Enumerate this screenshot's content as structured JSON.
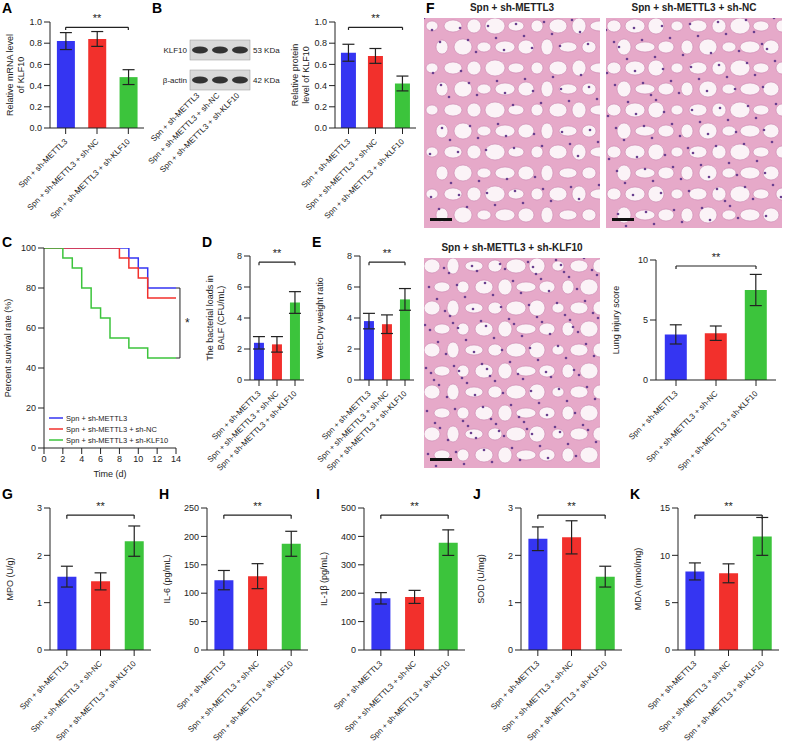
{
  "chart_data": [
    {
      "panel": "A",
      "type": "bar",
      "categories": [
        "Spn + sh-METTL3",
        "Spn + sh-METTL3 + sh-NC",
        "Spn + sh-METTL3 + sh-KLF10"
      ],
      "values": [
        0.82,
        0.84,
        0.48
      ],
      "errors": [
        0.08,
        0.07,
        0.07
      ],
      "colors": [
        "#3535f2",
        "#f2302c",
        "#3cc43c"
      ],
      "ylabel": "Relative mRNA level of KLF10",
      "ylim": [
        0,
        1
      ],
      "yticks": [
        {
          "value": 0,
          "label": "0.0"
        },
        0.2,
        0.4,
        0.6,
        0.8,
        {
          "value": 1,
          "label": "1.0"
        }
      ],
      "annotations": [
        {
          "text": "**",
          "between": [
            "Spn + sh-METTL3",
            "Spn + sh-METTL3 + sh-KLF10"
          ]
        }
      ]
    },
    {
      "panel": "B",
      "type": "bar",
      "categories": [
        "Spn + sh-METTL3",
        "Spn + sh-METTL3 + sh-NC",
        "Spn + sh-METTL3 + sh-KLF10"
      ],
      "values": [
        0.71,
        0.68,
        0.42
      ],
      "errors": [
        0.08,
        0.07,
        0.07
      ],
      "colors": [
        "#3535f2",
        "#f2302c",
        "#3cc43c"
      ],
      "ylabel": "Relative protein level of KLF10",
      "ylim": [
        0,
        1
      ],
      "yticks": [
        {
          "value": 0,
          "label": "0.0"
        },
        0.2,
        0.4,
        0.6,
        0.8,
        {
          "value": 1,
          "label": "1.0"
        }
      ],
      "annotations": [
        {
          "text": "**",
          "between": [
            "Spn + sh-METTL3",
            "Spn + sh-METTL3 + sh-KLF10"
          ]
        }
      ]
    },
    {
      "panel": "C",
      "type": "line",
      "line_style": "step",
      "x": [
        0,
        2,
        3,
        4,
        5,
        6,
        7,
        8,
        9,
        10,
        11,
        14
      ],
      "xlim": [
        0,
        14
      ],
      "xticks": [
        0,
        2,
        4,
        6,
        8,
        10,
        12,
        14
      ],
      "ylim": [
        0,
        100
      ],
      "yticks": [
        0,
        20,
        40,
        60,
        80,
        100
      ],
      "xlabel": "Time (d)",
      "ylabel": "Percent survival rate (%)",
      "legend": "lower left",
      "series": [
        {
          "name": "Spn + sh-METTL3",
          "color": "#3535f2",
          "values": [
            100,
            100,
            100,
            100,
            100,
            100,
            100,
            100,
            95,
            90,
            80,
            80
          ]
        },
        {
          "name": "Spn + sh-METTL3 + sh-NC",
          "color": "#f2302c",
          "values": [
            100,
            100,
            100,
            100,
            100,
            100,
            100,
            95,
            90,
            85,
            75,
            75
          ]
        },
        {
          "name": "Spn + sh-METTL3 + sh-KLF10",
          "color": "#3cc43c",
          "values": [
            100,
            95,
            90,
            80,
            70,
            65,
            55,
            55,
            50,
            50,
            45,
            45
          ]
        }
      ],
      "annotations": [
        {
          "text": "*",
          "between": [
            "Spn + sh-METTL3",
            "Spn + sh-METTL3 + sh-KLF10"
          ]
        }
      ]
    },
    {
      "panel": "D",
      "type": "bar",
      "categories": [
        "Spn + sh-METTL3",
        "Spn + sh-METTL3 + sh-NC",
        "Spn + sh-METTL3 + sh-KLF10"
      ],
      "values": [
        2.4,
        2.3,
        5.0
      ],
      "errors": [
        0.4,
        0.5,
        0.7
      ],
      "colors": [
        "#3535f2",
        "#f2302c",
        "#3cc43c"
      ],
      "ylabel": "The bacterial loads in BALF (CFU/mL)",
      "ylim": [
        0,
        8
      ],
      "yticks": [
        0,
        2,
        4,
        6,
        8
      ],
      "annotations": [
        {
          "text": "**",
          "between": [
            "Spn + sh-METTL3",
            "Spn + sh-METTL3 + sh-KLF10"
          ]
        }
      ]
    },
    {
      "panel": "E",
      "type": "bar",
      "categories": [
        "Spn + sh-METTL3",
        "Spn + sh-METTL3 + sh-NC",
        "Spn + sh-METTL3 + sh-KLF10"
      ],
      "values": [
        3.8,
        3.6,
        5.2
      ],
      "errors": [
        0.5,
        0.6,
        0.7
      ],
      "colors": [
        "#3535f2",
        "#f2302c",
        "#3cc43c"
      ],
      "ylabel": "Wet-Dry weight ratio",
      "ylim": [
        0,
        8
      ],
      "yticks": [
        0,
        2,
        4,
        6,
        8
      ],
      "annotations": [
        {
          "text": "**",
          "between": [
            "Spn + sh-METTL3",
            "Spn + sh-METTL3 + sh-KLF10"
          ]
        }
      ]
    },
    {
      "panel": "F",
      "type": "bar",
      "categories": [
        "Spn + sh-METTL3",
        "Spn + sh-METTL3 + sh-NC",
        "Spn + sh-METTL3 + sh-KLF10"
      ],
      "values": [
        3.8,
        3.9,
        7.5
      ],
      "errors": [
        0.8,
        0.6,
        1.3
      ],
      "colors": [
        "#3535f2",
        "#f2302c",
        "#3cc43c"
      ],
      "ylabel": "Lung injury score",
      "ylim": [
        0,
        10
      ],
      "yticks": [
        0,
        5,
        10
      ],
      "annotations": [
        {
          "text": "**",
          "between": [
            "Spn + sh-METTL3",
            "Spn + sh-METTL3 + sh-KLF10"
          ]
        }
      ]
    },
    {
      "panel": "G",
      "type": "bar",
      "categories": [
        "Spn + sh-METTL3",
        "Spn + sh-METTL3 + sh-NC",
        "Spn + sh-METTL3 + sh-KLF10"
      ],
      "values": [
        1.55,
        1.45,
        2.3
      ],
      "errors": [
        0.22,
        0.18,
        0.32
      ],
      "colors": [
        "#3535f2",
        "#f2302c",
        "#3cc43c"
      ],
      "ylabel": "MPO (U/g)",
      "ylim": [
        0,
        3
      ],
      "yticks": [
        0,
        1,
        2,
        3
      ],
      "annotations": [
        {
          "text": "**",
          "between": [
            "Spn + sh-METTL3",
            "Spn + sh-METTL3 + sh-KLF10"
          ]
        }
      ]
    },
    {
      "panel": "H",
      "type": "bar",
      "categories": [
        "Spn + sh-METTL3",
        "Spn + sh-METTL3 + sh-NC",
        "Spn + sh-METTL3 + sh-KLF10"
      ],
      "values": [
        123,
        130,
        187
      ],
      "errors": [
        17,
        22,
        22
      ],
      "colors": [
        "#3535f2",
        "#f2302c",
        "#3cc43c"
      ],
      "ylabel": "IL-6 (pg/mL)",
      "ylim": [
        0,
        250
      ],
      "yticks": [
        0,
        50,
        100,
        150,
        200,
        250
      ],
      "annotations": [
        {
          "text": "**",
          "between": [
            "Spn + sh-METTL3",
            "Spn + sh-METTL3 + sh-KLF10"
          ]
        }
      ]
    },
    {
      "panel": "I",
      "type": "bar",
      "categories": [
        "Spn + sh-METTL3",
        "Spn + sh-METTL3 + sh-NC",
        "Spn + sh-METTL3 + sh-KLF10"
      ],
      "values": [
        182,
        187,
        378
      ],
      "errors": [
        20,
        23,
        45
      ],
      "colors": [
        "#3535f2",
        "#f2302c",
        "#3cc43c"
      ],
      "ylabel": "IL-1β (pg/mL)",
      "ylim": [
        0,
        500
      ],
      "yticks": [
        0,
        100,
        200,
        300,
        400,
        500
      ],
      "annotations": [
        {
          "text": "**",
          "between": [
            "Spn + sh-METTL3",
            "Spn + sh-METTL3 + sh-KLF10"
          ]
        }
      ]
    },
    {
      "panel": "J",
      "type": "bar",
      "categories": [
        "Spn + sh-METTL3",
        "Spn + sh-METTL3 + sh-NC",
        "Spn + sh-METTL3 + sh-KLF10"
      ],
      "values": [
        2.35,
        2.38,
        1.55
      ],
      "errors": [
        0.25,
        0.35,
        0.22
      ],
      "colors": [
        "#3535f2",
        "#f2302c",
        "#3cc43c"
      ],
      "ylabel": "SOD (U/mg)",
      "ylim": [
        0,
        3
      ],
      "yticks": [
        0,
        1,
        2,
        3
      ],
      "annotations": [
        {
          "text": "**",
          "between": [
            "Spn + sh-METTL3",
            "Spn + sh-METTL3 + sh-KLF10"
          ]
        }
      ]
    },
    {
      "panel": "K",
      "type": "bar",
      "categories": [
        "Spn + sh-METTL3",
        "Spn + sh-METTL3 + sh-NC",
        "Spn + sh-METTL3 + sh-KLF10"
      ],
      "values": [
        8.3,
        8.1,
        12.0
      ],
      "errors": [
        0.9,
        1.0,
        2.0
      ],
      "colors": [
        "#3535f2",
        "#f2302c",
        "#3cc43c"
      ],
      "ylabel": "MDA (nmol/mg)",
      "ylim": [
        0,
        15
      ],
      "yticks": [
        0,
        5,
        10,
        15
      ],
      "annotations": [
        {
          "text": "**",
          "between": [
            "Spn + sh-METTL3",
            "Spn + sh-METTL3 + sh-KLF10"
          ]
        }
      ]
    }
  ],
  "blot": {
    "bands": [
      {
        "label": "KLF10",
        "size": "53 KDa"
      },
      {
        "label": "β-actin",
        "size": "42 KDa"
      }
    ],
    "lanes": [
      "Spn + sh-METTL3",
      "Spn + sh-METTL3 + sh-NC",
      "Spn + sh-METTL3 + sh-KLF10"
    ]
  },
  "histology": {
    "images": [
      {
        "title": "Spn + sh-METTL3"
      },
      {
        "title": "Spn + sh-METTL3 + sh-NC"
      },
      {
        "title": "Spn + sh-METTL3 + sh-KLF10"
      }
    ]
  }
}
